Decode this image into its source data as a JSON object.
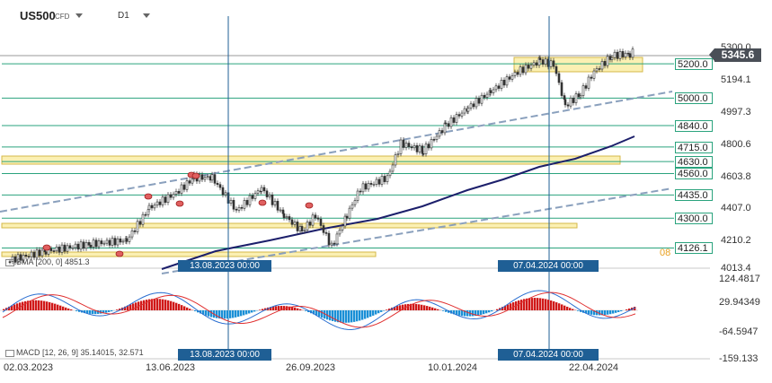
{
  "header": {
    "symbol": "US500",
    "symbol_type": "CFD",
    "timeframe": "D1"
  },
  "price_axis": [
    "5300.0",
    "5194.1",
    "4997.3",
    "4800.6",
    "4603.8",
    "4407.0",
    "4210.2",
    "4013.4"
  ],
  "current_price": "5345.6",
  "levels": [
    "5200.0",
    "5000.0",
    "4840.0",
    "4715.0",
    "4630.0",
    "4560.0",
    "4435.0",
    "4300.0",
    "4126.1"
  ],
  "level_prefix": "08",
  "crosshair_dates": [
    "13.08.2023 00:00",
    "07.04.2024 00:00"
  ],
  "sma_label": "SMA  [200,  0]  4851.3",
  "macd_axis": [
    "124.4817",
    "29.94349",
    "-64.5947",
    "-159.133"
  ],
  "macd_label": "MACD  [12,  26,  9]  35.14015,  32.571",
  "x_axis": [
    "02.03.2023",
    "13.06.2023",
    "26.09.2023",
    "10.01.2024",
    "22.04.2024"
  ],
  "colors": {
    "level_line": "#2aa37d",
    "channel": "#8aa0bd",
    "sma": "#1c1f6b",
    "zone_fill": "#fbf0b3",
    "zone_border": "#d4b84a",
    "crosshair": "#1f5f95",
    "macd_pos": "#d01818",
    "macd_neg": "#1a8fd6",
    "macd_line": "#2b6fd1",
    "signal_line": "#e03030"
  }
}
